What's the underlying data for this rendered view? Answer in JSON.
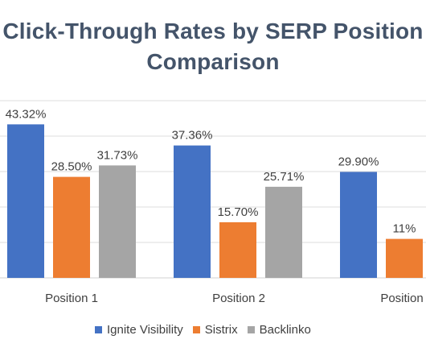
{
  "chart_data": {
    "type": "bar",
    "title_line1": "Click-Through Rates by SERP Position",
    "title_line2": "Comparison",
    "categories": [
      "Position 1",
      "Position 2",
      "Position"
    ],
    "series": [
      {
        "name": "Ignite Visibility",
        "color": "#4472c4",
        "values": [
          43.32,
          37.36,
          29.9
        ],
        "labels": [
          "43.32%",
          "37.36%",
          "29.90%"
        ]
      },
      {
        "name": "Sistrix",
        "color": "#ed7d31",
        "values": [
          28.5,
          15.7,
          11.0
        ],
        "labels": [
          "28.50%",
          "15.70%",
          "11%"
        ]
      },
      {
        "name": "Backlinko",
        "color": "#a5a5a5",
        "values": [
          31.73,
          25.71,
          null
        ],
        "labels": [
          "31.73%",
          "25.71%",
          ""
        ]
      }
    ],
    "ylim": [
      0,
      50
    ],
    "grid": true,
    "legend_position": "bottom"
  }
}
